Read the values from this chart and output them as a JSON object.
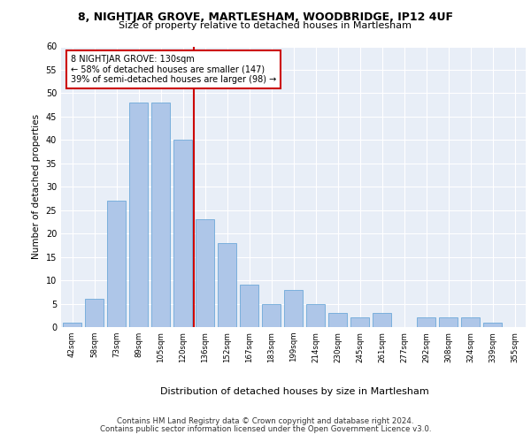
{
  "title1": "8, NIGHTJAR GROVE, MARTLESHAM, WOODBRIDGE, IP12 4UF",
  "title2": "Size of property relative to detached houses in Martlesham",
  "xlabel": "Distribution of detached houses by size in Martlesham",
  "ylabel": "Number of detached properties",
  "categories": [
    "42sqm",
    "58sqm",
    "73sqm",
    "89sqm",
    "105sqm",
    "120sqm",
    "136sqm",
    "152sqm",
    "167sqm",
    "183sqm",
    "199sqm",
    "214sqm",
    "230sqm",
    "245sqm",
    "261sqm",
    "277sqm",
    "292sqm",
    "308sqm",
    "324sqm",
    "339sqm",
    "355sqm"
  ],
  "values": [
    1,
    6,
    27,
    48,
    48,
    40,
    23,
    18,
    9,
    5,
    8,
    5,
    3,
    2,
    3,
    0,
    2,
    2,
    2,
    1,
    0
  ],
  "bar_color": "#aec6e8",
  "bar_edge_color": "#5a9fd4",
  "vline_x": 5.5,
  "vline_color": "#cc0000",
  "annotation_text": "8 NIGHTJAR GROVE: 130sqm\n← 58% of detached houses are smaller (147)\n39% of semi-detached houses are larger (98) →",
  "annotation_box_color": "#ffffff",
  "annotation_box_edge_color": "#cc0000",
  "ylim": [
    0,
    60
  ],
  "yticks": [
    0,
    5,
    10,
    15,
    20,
    25,
    30,
    35,
    40,
    45,
    50,
    55,
    60
  ],
  "plot_bg_color": "#e8eef7",
  "footer1": "Contains HM Land Registry data © Crown copyright and database right 2024.",
  "footer2": "Contains public sector information licensed under the Open Government Licence v3.0."
}
